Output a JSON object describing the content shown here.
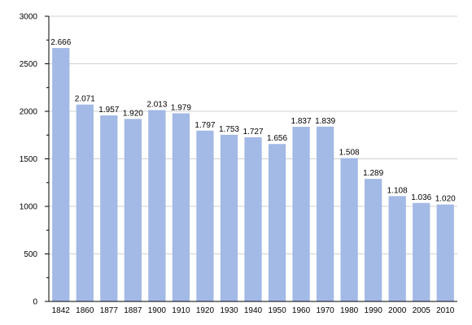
{
  "chart_data": {
    "type": "bar",
    "categories": [
      "1842",
      "1860",
      "1877",
      "1887",
      "1900",
      "1910",
      "1920",
      "1930",
      "1940",
      "1950",
      "1960",
      "1970",
      "1980",
      "1990",
      "2000",
      "2005",
      "2010"
    ],
    "values": [
      2666,
      2071,
      1957,
      1920,
      2013,
      1979,
      1797,
      1753,
      1727,
      1656,
      1837,
      1839,
      1508,
      1289,
      1108,
      1036,
      1020
    ],
    "value_labels": [
      "2.666",
      "2.071",
      "1.957",
      "1.920",
      "2.013",
      "1.979",
      "1.797",
      "1.753",
      "1.727",
      "1.656",
      "1.837",
      "1.839",
      "1.508",
      "1.289",
      "1.108",
      "1.036",
      "1.020"
    ],
    "yticks": [
      0,
      500,
      1000,
      1500,
      2000,
      2500,
      3000
    ],
    "ytick_labels": [
      "0",
      "500",
      "1000",
      "1500",
      "2000",
      "2500",
      "3000"
    ],
    "ylim": [
      0,
      3000
    ],
    "grid": true,
    "legend": "none",
    "colors": {
      "bar": "#a3b9e6",
      "grid": "#d0d0d0",
      "axis": "#000000"
    }
  }
}
